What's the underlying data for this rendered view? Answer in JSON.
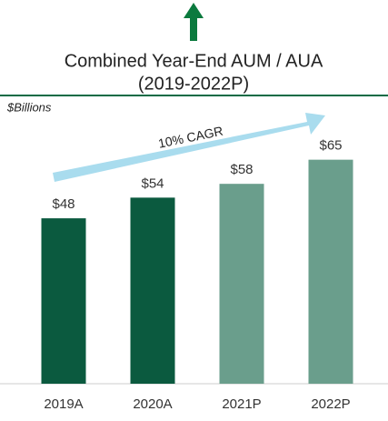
{
  "chart_data": {
    "type": "bar",
    "title": "Combined Year-End AUM / AUA",
    "subtitle": "(2019-2022P)",
    "units": "$Billions",
    "annotation": "10% CAGR",
    "categories": [
      "2019A",
      "2020A",
      "2021P",
      "2022P"
    ],
    "values": [
      48,
      54,
      58,
      65
    ],
    "value_labels": [
      "$48",
      "$54",
      "$58",
      "$65"
    ],
    "colors": [
      "#0b5a3f",
      "#0b5a3f",
      "#6a9e8c",
      "#6a9e8c"
    ]
  }
}
